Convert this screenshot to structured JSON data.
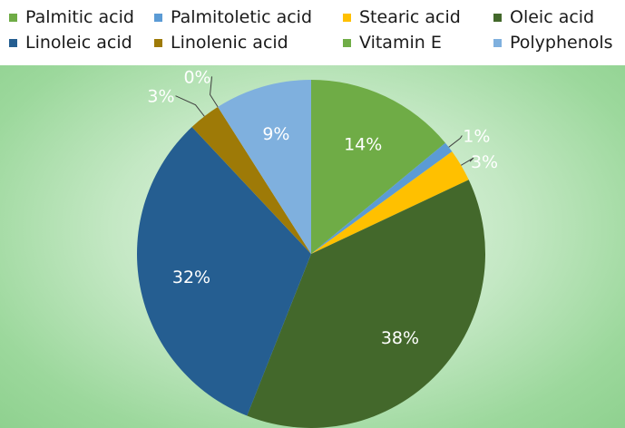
{
  "chart_data": {
    "type": "pie",
    "categories": [
      "Palmitic acid",
      "Palmitoletic acid",
      "Stearic acid",
      "Oleic acid",
      "Linoleic acid",
      "Linolenic acid",
      "Vitamin E",
      "Polyphenols"
    ],
    "values": [
      14,
      1,
      3,
      38,
      32,
      3,
      0,
      9
    ],
    "labels": [
      "14%",
      "1%",
      "3%",
      "38%",
      "32%",
      "3%",
      "0%",
      "9%"
    ],
    "colors": [
      "#6fac46",
      "#5b9bd5",
      "#ffc000",
      "#43682b",
      "#255e91",
      "#9e7a07",
      "#70ad47",
      "#7fb0de"
    ],
    "legend_position": "top"
  }
}
